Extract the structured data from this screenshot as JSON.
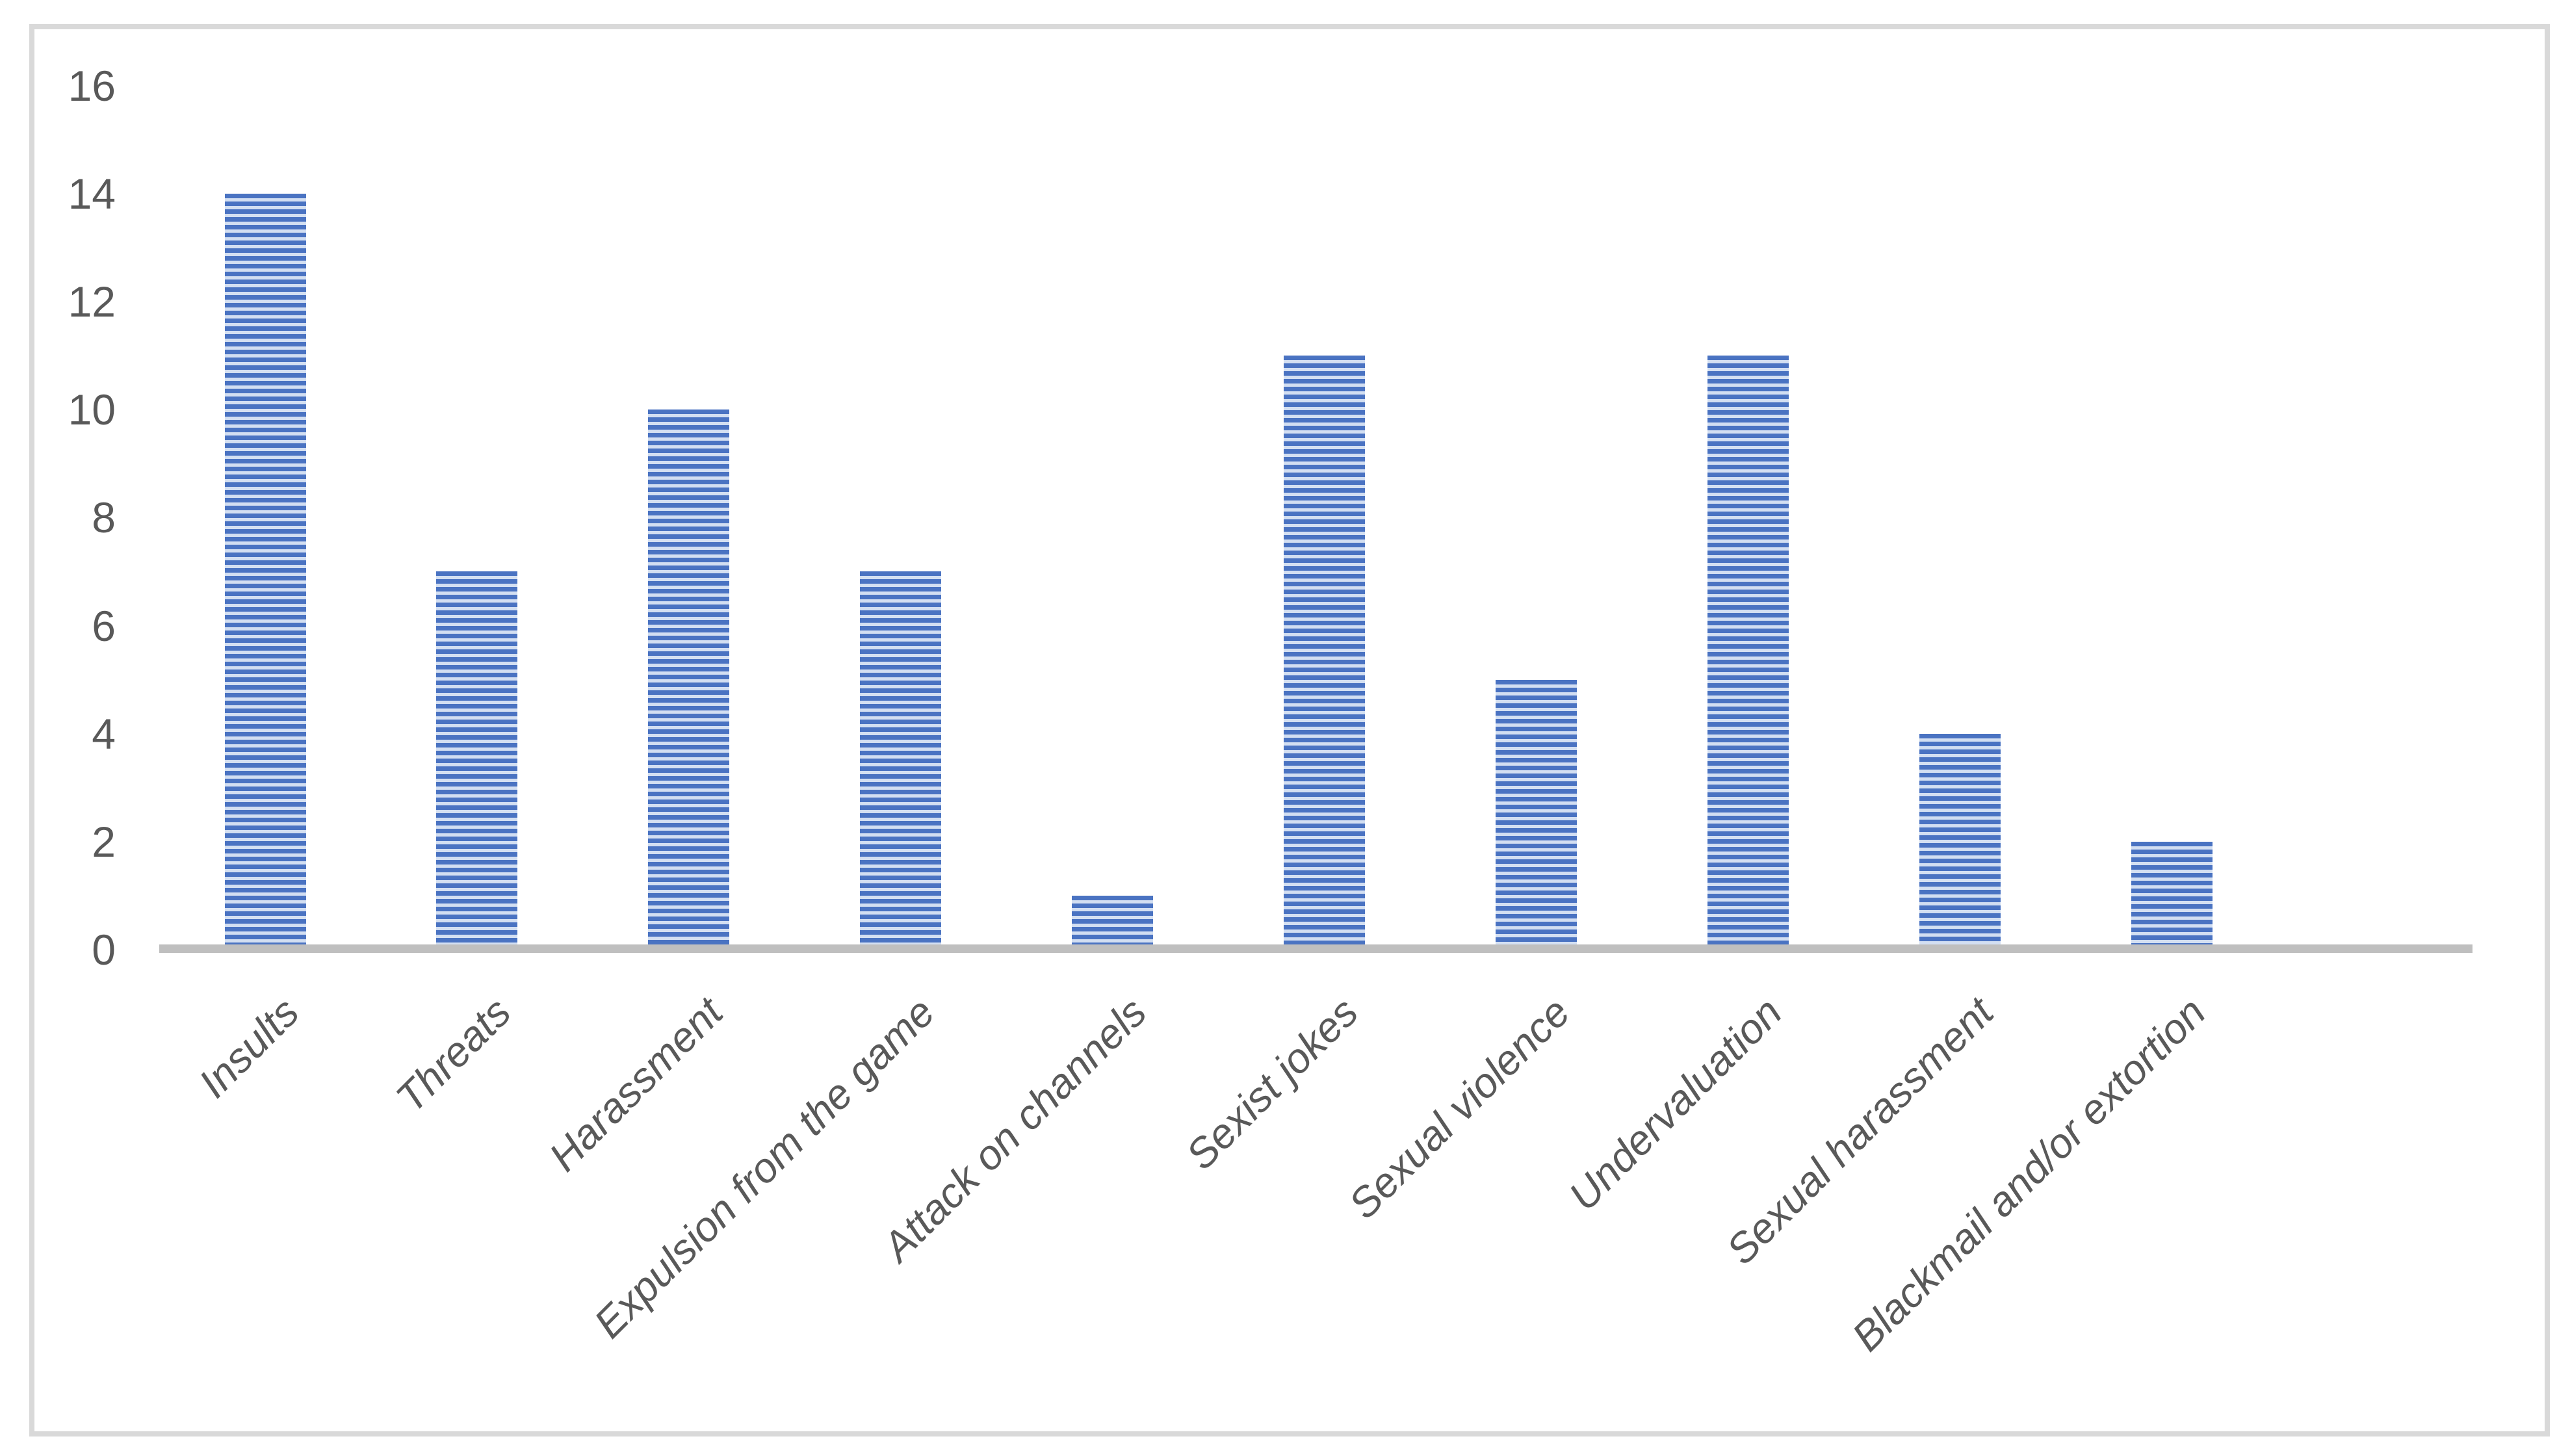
{
  "chart_data": {
    "type": "bar",
    "title": "",
    "xlabel": "",
    "ylabel": "",
    "categories": [
      "Insults",
      "Threats",
      "Harassment",
      "Expulsion from the game",
      "Attack on channels",
      "Sexist jokes",
      "Sexual violence",
      "Undervaluation",
      "Sexual harassment",
      "Blackmail and/or extortion"
    ],
    "values": [
      14,
      7,
      10,
      7,
      1,
      11,
      5,
      11,
      4,
      2
    ],
    "ylim": [
      0,
      16
    ],
    "yticks": [
      0,
      2,
      4,
      6,
      8,
      10,
      12,
      14,
      16
    ],
    "grid": "off",
    "legend": "none",
    "bar_pattern": "horizontal-stripes",
    "colors": {
      "bar_stripe_dark": "#4a73c2",
      "bar_stripe_light": "#d3dff2",
      "axis_line": "#bfbfbf",
      "tick_labels": "#595959",
      "chart_border": "#d9d9d9",
      "background": "#ffffff"
    }
  }
}
